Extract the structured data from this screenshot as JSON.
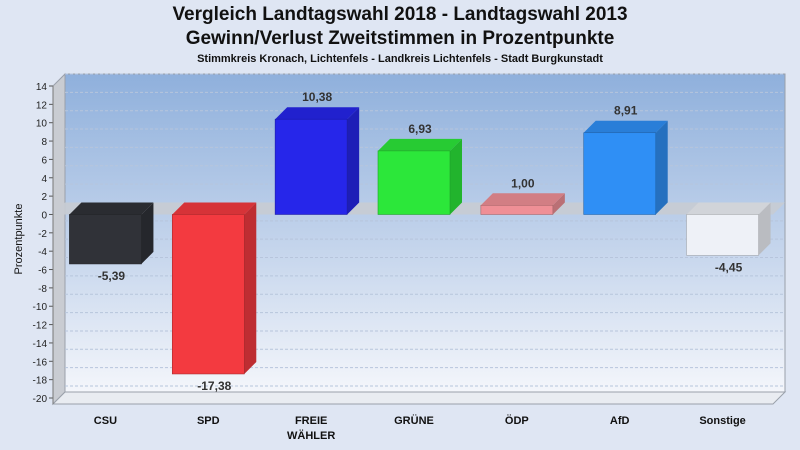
{
  "chart_data": {
    "type": "bar",
    "title": "Vergleich Landtagswahl 2018 - Landtagswahl 2013",
    "subtitle": "Gewinn/Verlust Zweitstimmen in Prozentpunkte",
    "subsubtitle": "Stimmkreis Kronach, Lichtenfels - Landkreis Lichtenfels - Stadt Burgkunstadt",
    "ylabel": "Prozentpunkte",
    "xlabel": "",
    "ylim": [
      -20,
      14
    ],
    "yticks": [
      14,
      12,
      10,
      8,
      6,
      4,
      2,
      0,
      -2,
      -4,
      -6,
      -8,
      -10,
      -12,
      -14,
      -16,
      -18,
      -20
    ],
    "categories": [
      {
        "line1": "CSU",
        "line2": ""
      },
      {
        "line1": "SPD",
        "line2": ""
      },
      {
        "line1": "FREIE",
        "line2": "WÄHLER"
      },
      {
        "line1": "GRÜNE",
        "line2": ""
      },
      {
        "line1": "ÖDP",
        "line2": ""
      },
      {
        "line1": "AfD",
        "line2": ""
      },
      {
        "line1": "Sonstige",
        "line2": ""
      }
    ],
    "values": [
      -5.39,
      -17.38,
      10.38,
      6.93,
      1.0,
      8.91,
      -4.45
    ],
    "value_labels": [
      "-5,39",
      "-17,38",
      "10,38",
      "6,93",
      "1,00",
      "8,91",
      "-4,45"
    ],
    "colors": [
      "#303238",
      "#f33a40",
      "#2626ea",
      "#2ce73a",
      "#ef8f96",
      "#2f8ff5",
      "#eef1f7"
    ],
    "grid": true,
    "legend": "none"
  }
}
